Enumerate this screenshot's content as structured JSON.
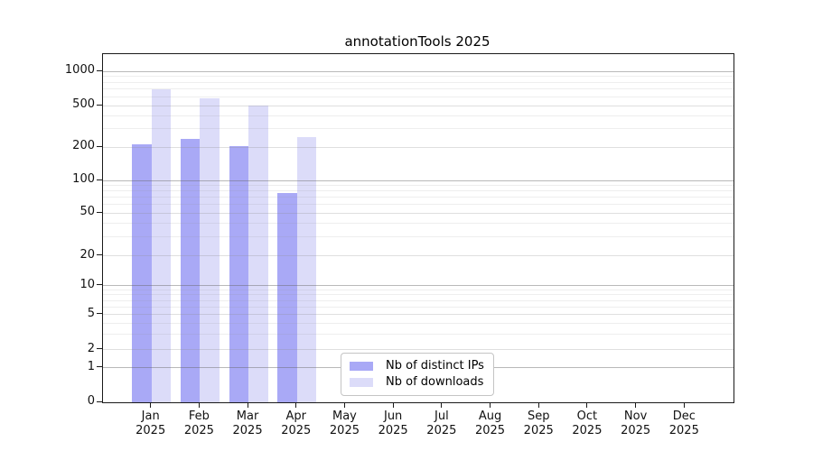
{
  "chart_data": {
    "type": "bar",
    "title": "annotationTools 2025",
    "categories": [
      "Jan 2025",
      "Feb 2025",
      "Mar 2025",
      "Apr 2025",
      "May 2025",
      "Jun 2025",
      "Jul 2025",
      "Aug 2025",
      "Sep 2025",
      "Oct 2025",
      "Nov 2025",
      "Dec 2025"
    ],
    "series": [
      {
        "name": "Nb of distinct IPs",
        "color": "#a9a9f6",
        "values": [
          215,
          240,
          207,
          77,
          0,
          0,
          0,
          0,
          0,
          0,
          0,
          0
        ]
      },
      {
        "name": "Nb of downloads",
        "color": "#dcdcf9",
        "values": [
          700,
          580,
          500,
          250,
          0,
          0,
          0,
          0,
          0,
          0,
          0,
          0
        ]
      }
    ],
    "xlabel": "",
    "ylabel": "",
    "yscale": "symlog",
    "y_ticks": [
      0,
      1,
      2,
      5,
      10,
      20,
      50,
      100,
      200,
      500,
      1000
    ],
    "ylim": [
      0,
      1400
    ],
    "grid": true,
    "legend_position": "lower-center-inside"
  }
}
